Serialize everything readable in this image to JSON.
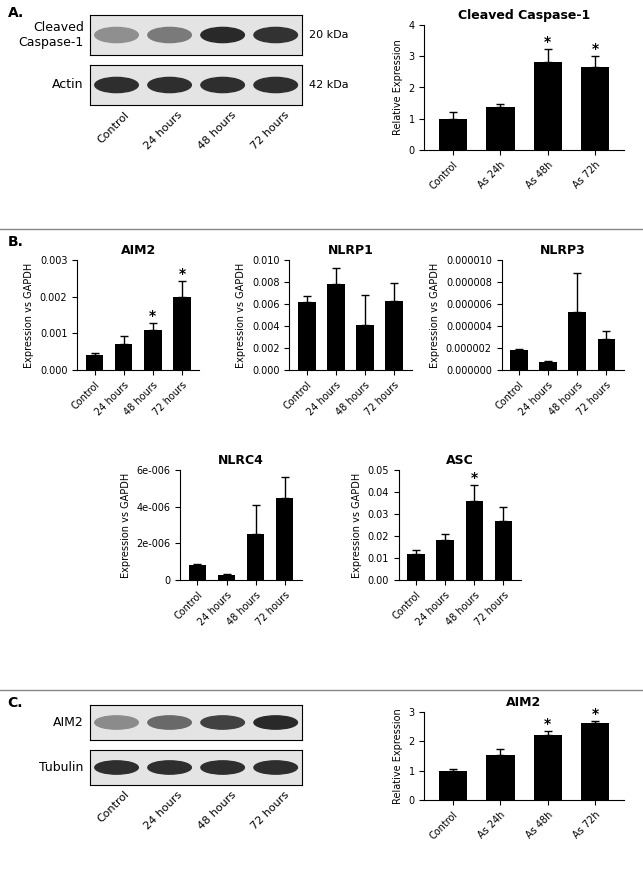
{
  "chart_data": [
    {
      "type": "bar",
      "title": "Cleaved Caspase-1",
      "y_label": "Relative Expression",
      "color": "#000000",
      "categories": [
        "Control",
        "As 24h",
        "As 48h",
        "As 72h"
      ],
      "values": [
        1.0,
        1.38,
        2.82,
        2.65
      ],
      "errors": [
        0.2,
        0.1,
        0.4,
        0.35
      ],
      "ylim": [
        0,
        4
      ],
      "yticks": [
        0,
        1,
        2,
        3,
        4
      ],
      "annotations": [
        {
          "category": "As 48h",
          "text": "*"
        },
        {
          "category": "As 72h",
          "text": "*"
        }
      ]
    },
    {
      "type": "bar",
      "title": "AIM2",
      "y_label": "Expression vs GAPDH",
      "color": "#000000",
      "categories": [
        "Control",
        "24 hours",
        "48 hours",
        "72 hours"
      ],
      "values": [
        0.00042,
        0.00072,
        0.0011,
        0.00198
      ],
      "errors": [
        5e-05,
        0.0002,
        0.00018,
        0.00045
      ],
      "ylim": [
        0,
        0.003
      ],
      "yticks": [
        {
          "value": 0,
          "label": "0.000"
        },
        {
          "value": 0.001,
          "label": "0.001"
        },
        {
          "value": 0.002,
          "label": "0.002"
        },
        {
          "value": 0.003,
          "label": "0.003"
        }
      ],
      "annotations": [
        {
          "category": "48 hours",
          "text": "*"
        },
        {
          "category": "72 hours",
          "text": "*"
        }
      ]
    },
    {
      "type": "bar",
      "title": "NLRP1",
      "y_label": "Expression vs GAPDH",
      "color": "#000000",
      "categories": [
        "Control",
        "24 hours",
        "48 hours",
        "72 hours"
      ],
      "values": [
        0.0062,
        0.0078,
        0.0041,
        0.0063
      ],
      "errors": [
        0.0005,
        0.0015,
        0.0027,
        0.0016
      ],
      "ylim": [
        0,
        0.01
      ],
      "yticks": [
        {
          "value": 0,
          "label": "0.000"
        },
        {
          "value": 0.002,
          "label": "0.002"
        },
        {
          "value": 0.004,
          "label": "0.004"
        },
        {
          "value": 0.006,
          "label": "0.006"
        },
        {
          "value": 0.008,
          "label": "0.008"
        },
        {
          "value": 0.01,
          "label": "0.010"
        }
      ],
      "annotations": []
    },
    {
      "type": "bar",
      "title": "NLRP3",
      "y_label": "Expression vs GAPDH",
      "color": "#000000",
      "categories": [
        "Control",
        "24 hours",
        "48 hours",
        "72 hours"
      ],
      "values": [
        1.8e-06,
        7.5e-07,
        5.3e-06,
        2.8e-06
      ],
      "errors": [
        1e-07,
        1e-07,
        3.5e-06,
        7e-07
      ],
      "ylim": [
        0,
        1e-05
      ],
      "yticks": [
        {
          "value": 0,
          "label": "0.000000"
        },
        {
          "value": 2e-06,
          "label": "0.000002"
        },
        {
          "value": 4e-06,
          "label": "0.000004"
        },
        {
          "value": 6e-06,
          "label": "0.000006"
        },
        {
          "value": 8e-06,
          "label": "0.000008"
        },
        {
          "value": 1e-05,
          "label": "0.000010"
        }
      ],
      "annotations": []
    },
    {
      "type": "bar",
      "title": "NLRC4",
      "y_label": "Expression vs GAPDH",
      "color": "#000000",
      "categories": [
        "Control",
        "24 hours",
        "48 hours",
        "72 hours"
      ],
      "values": [
        8e-07,
        2.8e-07,
        2.5e-06,
        4.5e-06
      ],
      "errors": [
        5e-08,
        5e-08,
        1.6e-06,
        1.1e-06
      ],
      "ylim": [
        0,
        6e-06
      ],
      "yticks": [
        0,
        {
          "value": 2e-06,
          "label": "2e-006"
        },
        {
          "value": 4e-06,
          "label": "4e-006"
        },
        {
          "value": 6e-06,
          "label": "6e-006"
        }
      ],
      "annotations": []
    },
    {
      "type": "bar",
      "title": "ASC",
      "y_label": "Expression vs GAPDH",
      "color": "#000000",
      "categories": [
        "Control",
        "24 hours",
        "48 hours",
        "72 hours"
      ],
      "values": [
        0.012,
        0.018,
        0.036,
        0.027
      ],
      "errors": [
        0.0015,
        0.003,
        0.007,
        0.006
      ],
      "ylim": [
        0,
        0.05
      ],
      "yticks": [
        {
          "value": 0,
          "label": "0.00"
        },
        {
          "value": 0.01,
          "label": "0.01"
        },
        {
          "value": 0.02,
          "label": "0.02"
        },
        {
          "value": 0.03,
          "label": "0.03"
        },
        {
          "value": 0.04,
          "label": "0.04"
        },
        {
          "value": 0.05,
          "label": "0.05"
        }
      ],
      "annotations": [
        {
          "category": "48 hours",
          "text": "*"
        }
      ]
    },
    {
      "type": "bar",
      "title": "AIM2",
      "y_label": "Relative Expression",
      "color": "#000000",
      "categories": [
        "Control",
        "As 24h",
        "As 48h",
        "As 72h"
      ],
      "values": [
        1.0,
        1.55,
        2.22,
        2.62
      ],
      "errors": [
        0.06,
        0.2,
        0.12,
        0.08
      ],
      "ylim": [
        0,
        3
      ],
      "yticks": [
        0,
        1,
        2,
        3
      ],
      "annotations": [
        {
          "category": "As 48h",
          "text": "*"
        },
        {
          "category": "As 72h",
          "text": "*"
        }
      ]
    }
  ],
  "panels": [
    {
      "label": "A.",
      "blot": {
        "lanes": [
          "Control",
          "24 hours",
          "48 hours",
          "72 hours"
        ],
        "rows": [
          {
            "label": "Cleaved\nCaspase-1",
            "size": "20 kDa"
          },
          {
            "label": "Actin",
            "size": "42 kDa"
          }
        ]
      }
    },
    {
      "label": "B."
    },
    {
      "label": "C.",
      "blot": {
        "lanes": [
          "Control",
          "24 hours",
          "48 hours",
          "72 hours"
        ],
        "rows": [
          {
            "label": "AIM2"
          },
          {
            "label": "Tubulin"
          }
        ]
      }
    }
  ]
}
